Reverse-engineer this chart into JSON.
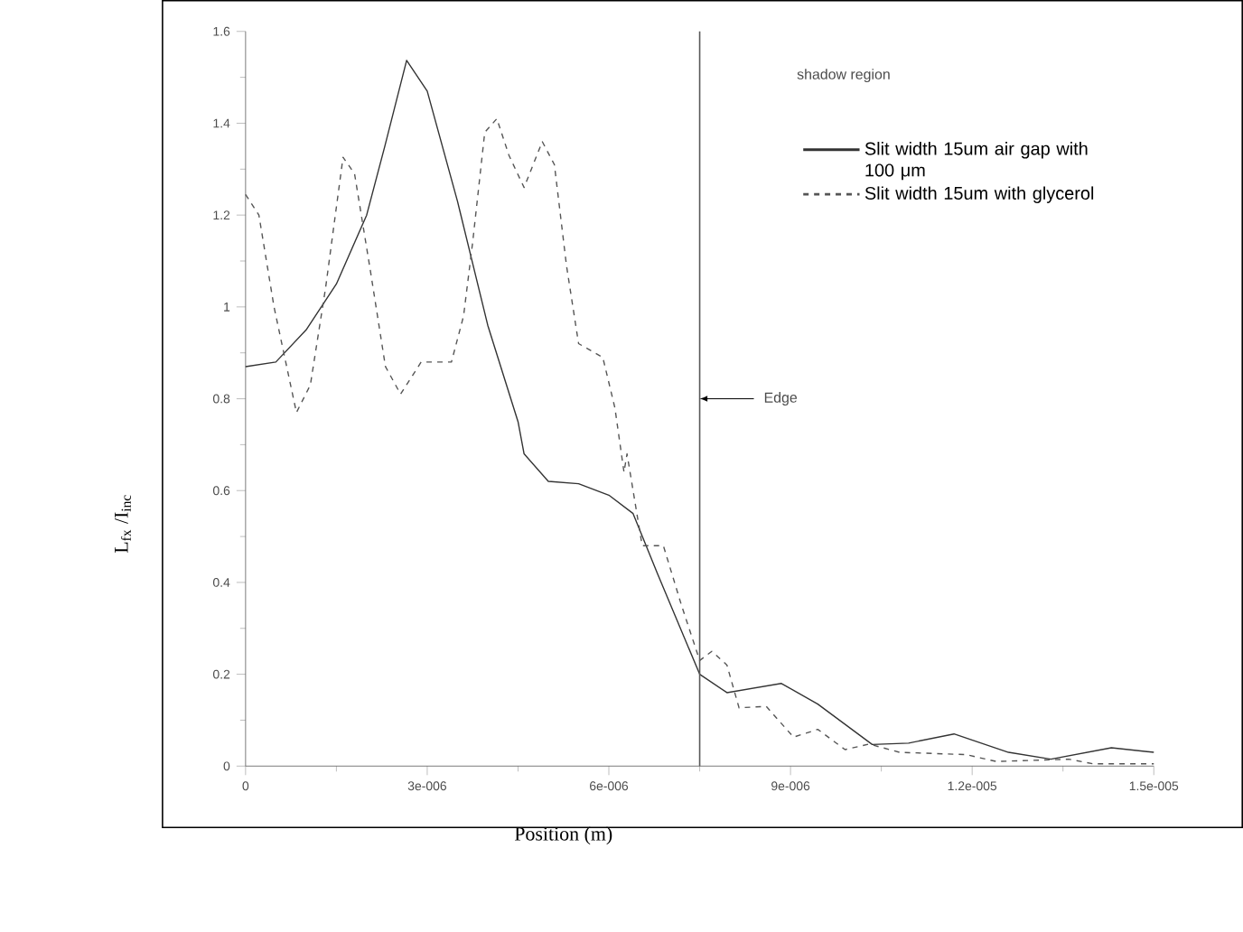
{
  "chart_data": {
    "type": "line",
    "xlabel": "Position (m)",
    "ylabel": "L$_{fx}$ /I$_{inc}$",
    "xlim": [
      0,
      1.5e-05
    ],
    "ylim": [
      0,
      1.6
    ],
    "xticks": [
      {
        "value": 0,
        "label": "0"
      },
      {
        "value": 3e-06,
        "label": "3e-006"
      },
      {
        "value": 6e-06,
        "label": "6e-006"
      },
      {
        "value": 9e-06,
        "label": "9e-006"
      },
      {
        "value": 1.2e-05,
        "label": "1.2e-005"
      },
      {
        "value": 1.5e-05,
        "label": "1.5e-005"
      }
    ],
    "yticks": [
      0,
      0.2,
      0.4,
      0.6,
      0.8,
      1,
      1.2,
      1.4,
      1.6
    ],
    "grid": false,
    "legend": "top right",
    "annotations": [
      "shadow region"
    ],
    "ref_lines": [
      {
        "axis": "x",
        "value": 7.5e-06,
        "label": "Edge"
      }
    ],
    "series": [
      {
        "name": "Slit width 15um air gap with 100 μm",
        "color": "#333333",
        "line_style": "solid",
        "x": [
          0,
          5e-07,
          1e-06,
          1.5e-06,
          2e-06,
          2.3e-06,
          2.66e-06,
          3e-06,
          3.5e-06,
          4e-06,
          4.5e-06,
          4.6e-06,
          5e-06,
          5.5e-06,
          6e-06,
          6.4e-06,
          6.8e-06,
          7.5e-06,
          7.95e-06,
          8.85e-06,
          9.45e-06,
          1.035e-05,
          1.095e-05,
          1.17e-05,
          1.26e-05,
          1.33e-05,
          1.43e-05,
          1.5e-05
        ],
        "values": [
          0.87,
          0.88,
          0.95,
          1.05,
          1.2,
          1.35,
          1.537,
          1.47,
          1.23,
          0.96,
          0.75,
          0.68,
          0.62,
          0.615,
          0.59,
          0.55,
          0.42,
          0.2,
          0.16,
          0.18,
          0.135,
          0.047,
          0.05,
          0.07,
          0.03,
          0.015,
          0.04,
          0.03
        ]
      },
      {
        "name": "Slit width  15um with glycerol",
        "color": "#555555",
        "line_style": "dashed",
        "x": [
          0,
          2.2e-07,
          4.7e-07,
          8.4e-07,
          1.07e-06,
          1.32e-06,
          1.61e-06,
          1.8e-06,
          2.06e-06,
          2.31e-06,
          2.56e-06,
          2.9e-06,
          3.15e-06,
          3.4e-06,
          3.6e-06,
          3.75e-06,
          3.95e-06,
          4.15e-06,
          4.35e-06,
          4.6e-06,
          4.9e-06,
          5.1e-06,
          5.3e-06,
          5.5e-06,
          5.9e-06,
          6.1e-06,
          6.25e-06,
          6.3e-06,
          6.55e-06,
          6.9e-06,
          7.2e-06,
          7.5e-06,
          7.7e-06,
          7.95e-06,
          8.15e-06,
          8.6e-06,
          9.05e-06,
          9.45e-06,
          9.9e-06,
          1.03e-05,
          1.08e-05,
          1.19e-05,
          1.24e-05,
          1.36e-05,
          1.4e-05,
          1.5e-05
        ],
        "values": [
          1.245,
          1.2,
          1.0,
          0.77,
          0.83,
          1.04,
          1.326,
          1.29,
          1.08,
          0.87,
          0.81,
          0.88,
          0.88,
          0.88,
          0.98,
          1.14,
          1.38,
          1.41,
          1.33,
          1.26,
          1.36,
          1.31,
          1.09,
          0.92,
          0.89,
          0.78,
          0.64,
          0.68,
          0.48,
          0.48,
          0.35,
          0.23,
          0.25,
          0.22,
          0.127,
          0.13,
          0.063,
          0.08,
          0.036,
          0.048,
          0.03,
          0.025,
          0.01,
          0.015,
          0.005,
          0.005
        ]
      }
    ]
  }
}
